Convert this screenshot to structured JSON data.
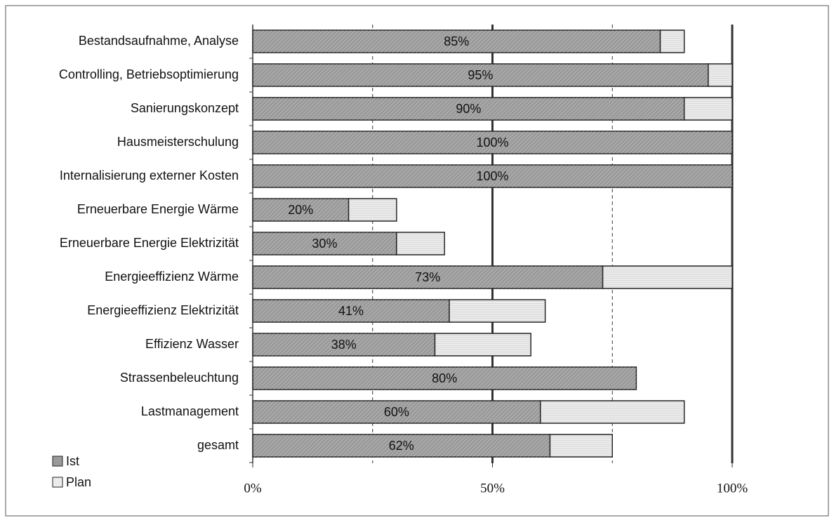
{
  "chart_data": {
    "type": "stacked_barh",
    "categories": [
      "Bestandsaufnahme, Analyse",
      "Controlling, Betriebsoptimierung",
      "Sanierungskonzept",
      "Hausmeisterschulung",
      "Internalisierung externer Kosten",
      "Erneuerbare Energie Wärme",
      "Erneuerbare Energie Elektrizität",
      "Energieeffizienz Wärme",
      "Energieeffizienz Elektrizität",
      "Effizienz Wasser",
      "Strassenbeleuchtung",
      "Lastmanagement",
      "gesamt"
    ],
    "series": [
      {
        "name": "Ist",
        "color": "#9a9a9a",
        "values": [
          85,
          95,
          90,
          100,
          100,
          20,
          30,
          73,
          41,
          38,
          80,
          60,
          62
        ],
        "value_labels": [
          "85%",
          "95%",
          "90%",
          "100%",
          "100%",
          "20%",
          "30%",
          "73%",
          "41%",
          "38%",
          "80%",
          "60%",
          "62%"
        ]
      },
      {
        "name": "Plan",
        "color": "#ececec",
        "values": [
          5,
          5,
          10,
          0,
          0,
          10,
          10,
          27,
          20,
          20,
          0,
          30,
          13
        ]
      }
    ],
    "xlim": [
      0,
      100
    ],
    "xticks": [
      {
        "value": 0,
        "label": "0%"
      },
      {
        "value": 50,
        "label": "50%"
      },
      {
        "value": 100,
        "label": "100%"
      }
    ],
    "minor_gridlines": [
      25,
      75
    ],
    "legend": "bottom-left"
  }
}
